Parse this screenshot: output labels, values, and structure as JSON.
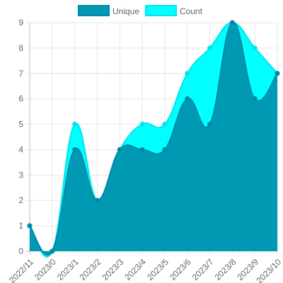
{
  "chart_data": {
    "type": "area",
    "categories": [
      "2022/11",
      "2023/0",
      "2023/1",
      "2023/2",
      "2023/3",
      "2023/4",
      "2023/5",
      "2023/6",
      "2023/7",
      "2023/8",
      "2023/9",
      "2023/10"
    ],
    "series": [
      {
        "name": "Unique",
        "values": [
          1,
          0,
          4,
          2,
          4,
          4,
          4,
          6,
          5,
          9,
          6,
          7
        ],
        "color": "#0099b3",
        "stroke": "#0088a8"
      },
      {
        "name": "Count",
        "values": [
          1,
          0,
          5,
          2,
          4,
          5,
          5,
          7,
          8,
          9,
          8,
          7
        ],
        "color": "#00ffff",
        "stroke": "#00e5ee"
      }
    ],
    "ylim": [
      0,
      9
    ],
    "yticks": [
      0,
      1,
      2,
      3,
      4,
      5,
      6,
      7,
      8,
      9
    ],
    "grid": true,
    "legend": "top"
  }
}
